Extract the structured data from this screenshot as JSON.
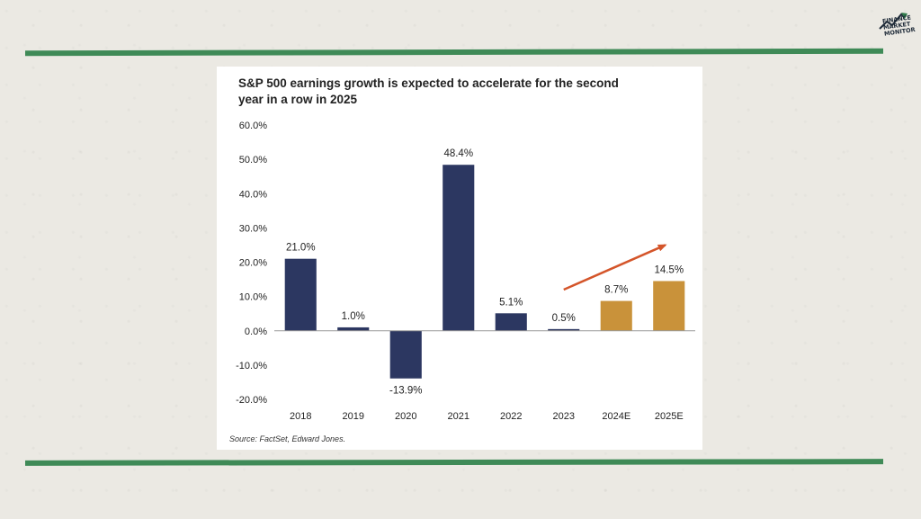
{
  "logo": {
    "line1": "FINANCE",
    "line2": "MARKET",
    "line3": "MONITOR"
  },
  "chart_data": {
    "type": "bar",
    "title": "S&P 500 earnings growth is expected to accelerate for the second year in a row in 2025",
    "source": "Source: FactSet, Edward Jones.",
    "categories": [
      "2018",
      "2019",
      "2020",
      "2021",
      "2022",
      "2023",
      "2024E",
      "2025E"
    ],
    "values": [
      21.0,
      1.0,
      -13.9,
      48.4,
      5.1,
      0.5,
      8.7,
      14.5
    ],
    "data_labels": [
      "21.0%",
      "1.0%",
      "-13.9%",
      "48.4%",
      "5.1%",
      "0.5%",
      "8.7%",
      "14.5%"
    ],
    "ylim": [
      -20,
      60
    ],
    "yticks": [
      60,
      50,
      40,
      30,
      20,
      10,
      0,
      -10,
      -20
    ],
    "ytick_labels": [
      "60.0%",
      "50.0%",
      "40.0%",
      "30.0%",
      "20.0%",
      "10.0%",
      "0.0%",
      "-10.0%",
      "-20.0%"
    ],
    "grid": false,
    "colors": {
      "actual": "#2c3761",
      "estimate": "#c9923a",
      "arrow": "#d4552a"
    },
    "estimate_categories": [
      "2024E",
      "2025E"
    ],
    "annotations": [
      {
        "type": "arrow",
        "from_category": "2023",
        "from_value": 12,
        "to_category": "2025E",
        "to_value": 25
      }
    ]
  }
}
